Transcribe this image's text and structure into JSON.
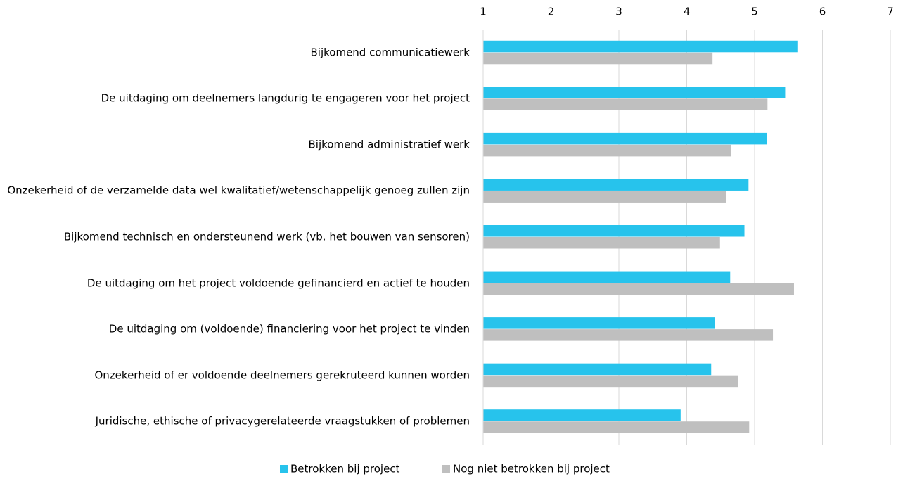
{
  "chart_data": {
    "type": "barh",
    "categories": [
      "Bijkomend communicatiewerk",
      "De uitdaging om deelnemers langdurig te engageren voor het project",
      "Bijkomend administratief werk",
      "Onzekerheid of de verzamelde data wel kwalitatief/wetenschappelijk genoeg zullen zijn",
      "Bijkomend technisch en ondersteunend werk (vb. het bouwen van sensoren)",
      "De uitdaging om het project voldoende gefinancierd en actief te houden",
      "De uitdaging om (voldoende) financiering voor het project te vinden",
      "Onzekerheid of er voldoende deelnemers gerekruteerd kunnen worden",
      "Juridische, ethische of privacygerelateerde vraagstukken of problemen"
    ],
    "series": [
      {
        "name": "Betrokken bij project",
        "color": "#27c3ec",
        "values": [
          5.63,
          5.45,
          5.18,
          4.91,
          4.85,
          4.64,
          4.41,
          4.36,
          3.91
        ]
      },
      {
        "name": "Nog niet betrokken bij project",
        "color": "#bfbfbf",
        "values": [
          4.38,
          5.19,
          4.65,
          4.58,
          4.49,
          5.58,
          5.27,
          4.76,
          4.92
        ]
      }
    ],
    "xlim": [
      1,
      7
    ],
    "xticks": [
      1,
      2,
      3,
      4,
      5,
      6,
      7
    ],
    "grid": true,
    "legend": "bottom"
  }
}
